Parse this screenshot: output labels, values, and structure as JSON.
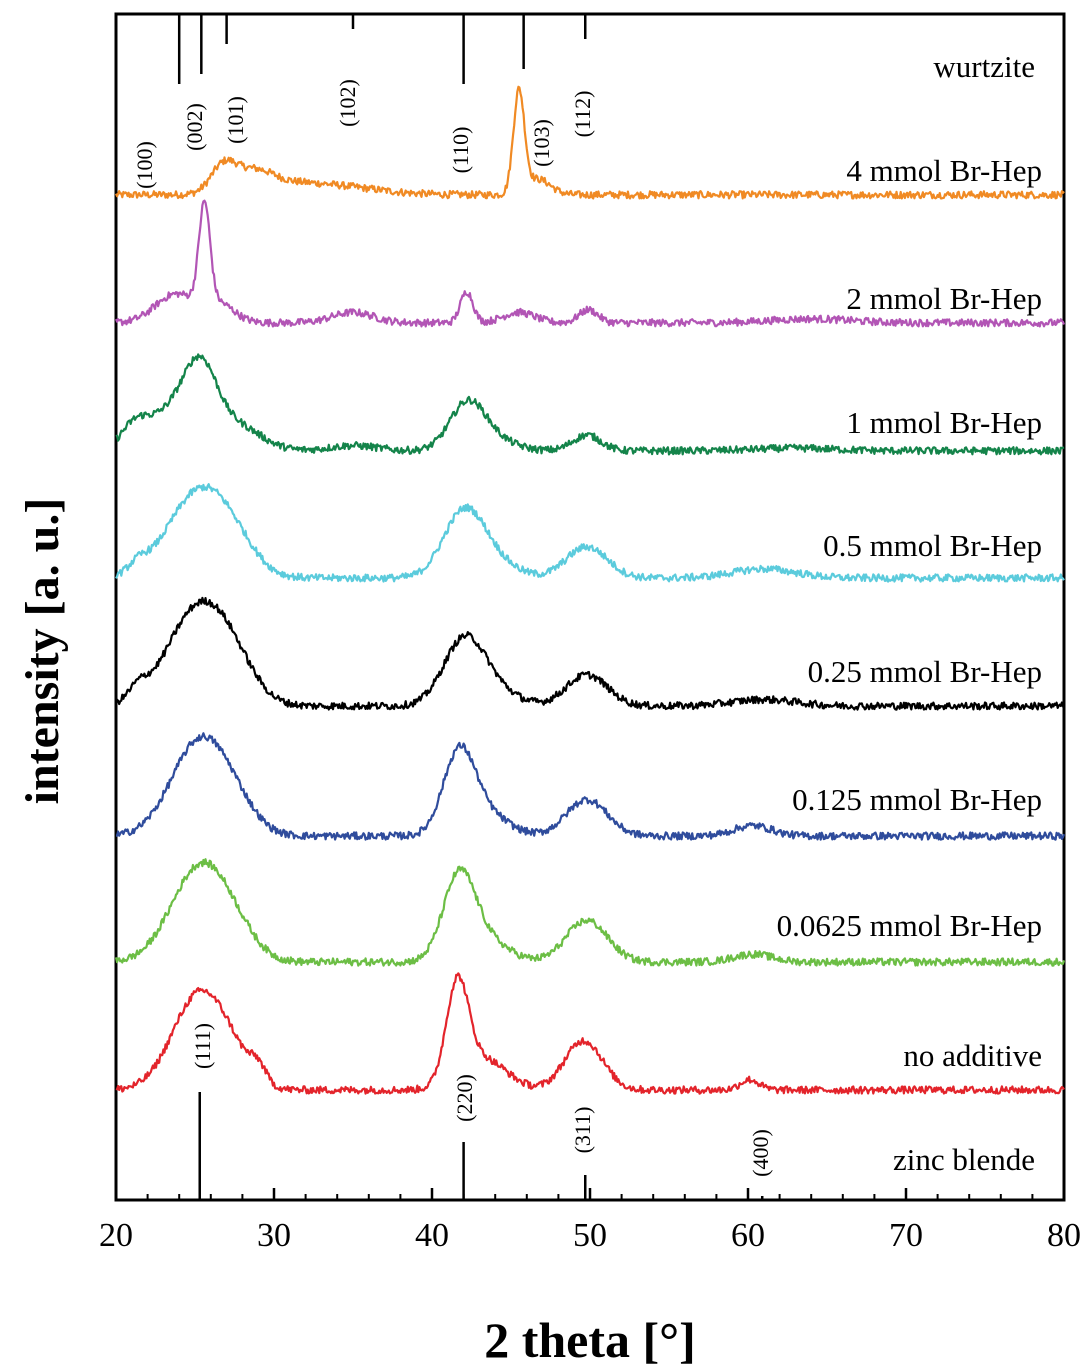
{
  "chart_data": {
    "type": "line",
    "xlabel": "2 theta [°]",
    "ylabel": "intensity [a. u.]",
    "xlim": [
      20,
      80
    ],
    "x_ticks": [
      "20",
      "30",
      "40",
      "50",
      "60",
      "70",
      "80"
    ],
    "y_tick_labels": false,
    "grid": false,
    "legend": "none (series labelled directly above each curve, right side)",
    "wurtzite_reference": {
      "label": "wurtzite",
      "peaks": [
        {
          "hkl": "(100)",
          "x": 24.0
        },
        {
          "hkl": "(002)",
          "x": 25.4
        },
        {
          "hkl": "(101)",
          "x": 27.0
        },
        {
          "hkl": "(102)",
          "x": 35.0
        },
        {
          "hkl": "(110)",
          "x": 42.0
        },
        {
          "hkl": "(103)",
          "x": 45.8
        },
        {
          "hkl": "(112)",
          "x": 49.7
        }
      ]
    },
    "zinc_blende_reference": {
      "label": "zinc blende",
      "peaks": [
        {
          "hkl": "(111)",
          "x": 25.3
        },
        {
          "hkl": "(220)",
          "x": 42.0
        },
        {
          "hkl": "(311)",
          "x": 49.7
        },
        {
          "hkl": "(400)",
          "x": 60.9
        }
      ]
    },
    "series": [
      {
        "name": "4 mmol Br-Hep",
        "color": "#f08a24",
        "baseline": 0.2,
        "peaks": [
          [
            26.8,
            1.0,
            0.8
          ],
          [
            28.7,
            0.7,
            1.2
          ],
          [
            31,
            0.4,
            2.5
          ],
          [
            35,
            0.2,
            2.5
          ],
          [
            45.5,
            3.9,
            0.35
          ],
          [
            46.7,
            0.6,
            0.8
          ]
        ]
      },
      {
        "name": "2 mmol Br-Hep",
        "color": "#b255b5",
        "baseline": 0.2,
        "peaks": [
          [
            23.8,
            1.1,
            1.3
          ],
          [
            25.6,
            3.8,
            0.35
          ],
          [
            26.5,
            0.7,
            1.0
          ],
          [
            35,
            0.4,
            1.3
          ],
          [
            42.2,
            1.2,
            0.4
          ],
          [
            45.5,
            0.4,
            1.0
          ],
          [
            49.9,
            0.5,
            0.6
          ],
          [
            64,
            0.15,
            2.5
          ]
        ]
      },
      {
        "name": "1 mmol Br-Hep",
        "color": "#14844a",
        "baseline": 0.2,
        "peaks": [
          [
            21.2,
            0.9,
            0.9
          ],
          [
            23.8,
            1.6,
            1.5
          ],
          [
            25.4,
            2.3,
            1.0
          ],
          [
            27.5,
            1.0,
            1.6
          ],
          [
            35,
            0.2,
            1.5
          ],
          [
            42.2,
            1.6,
            1.1
          ],
          [
            43.5,
            0.5,
            1.5
          ],
          [
            49.8,
            0.6,
            0.9
          ],
          [
            63,
            0.1,
            2.5
          ]
        ]
      },
      {
        "name": "0.5 mmol Br-Hep",
        "color": "#5bcbdc",
        "baseline": 0.0,
        "peaks": [
          [
            21.4,
            0.35,
            0.6
          ],
          [
            25.3,
            3.3,
            2.0
          ],
          [
            27.5,
            0.6,
            1.4
          ],
          [
            42.0,
            2.4,
            1.3
          ],
          [
            43.8,
            0.6,
            1.5
          ],
          [
            49.8,
            1.2,
            1.3
          ],
          [
            61,
            0.35,
            2.0
          ]
        ]
      },
      {
        "name": "0.25 mmol Br-Hep",
        "color": "#000000",
        "baseline": 0.0,
        "peaks": [
          [
            21.4,
            0.45,
            0.6
          ],
          [
            25.3,
            3.8,
            2.0
          ],
          [
            27.5,
            0.7,
            1.4
          ],
          [
            42.0,
            2.4,
            1.3
          ],
          [
            43.8,
            0.6,
            1.5
          ],
          [
            49.8,
            1.2,
            1.3
          ],
          [
            61,
            0.25,
            2.0
          ]
        ]
      },
      {
        "name": "0.125 mmol Br-Hep",
        "color": "#2f4c9c",
        "baseline": 0.0,
        "peaks": [
          [
            25.3,
            3.6,
            1.8
          ],
          [
            27.5,
            0.7,
            1.4
          ],
          [
            41.7,
            2.9,
            1.0
          ],
          [
            43.2,
            0.9,
            1.5
          ],
          [
            49.8,
            1.4,
            1.3
          ],
          [
            60.3,
            0.4,
            1.2
          ]
        ]
      },
      {
        "name": "0.0625 mmol Br-Hep",
        "color": "#6cbe45",
        "baseline": 0.0,
        "peaks": [
          [
            25.3,
            3.6,
            1.8
          ],
          [
            27.5,
            0.7,
            1.4
          ],
          [
            41.7,
            3.0,
            1.0
          ],
          [
            43.2,
            0.9,
            1.5
          ],
          [
            49.8,
            1.6,
            1.3
          ],
          [
            60.3,
            0.3,
            1.2
          ]
        ]
      },
      {
        "name": "no additive",
        "color": "#e3242b",
        "baseline": 0.0,
        "peaks": [
          [
            25.3,
            3.7,
            1.7
          ],
          [
            27.5,
            0.6,
            1.2
          ],
          [
            29.0,
            0.6,
            0.5
          ],
          [
            41.6,
            3.7,
            0.7
          ],
          [
            43.2,
            1.2,
            1.5
          ],
          [
            49.6,
            1.9,
            1.2
          ],
          [
            60.1,
            0.4,
            0.6
          ]
        ]
      }
    ]
  }
}
